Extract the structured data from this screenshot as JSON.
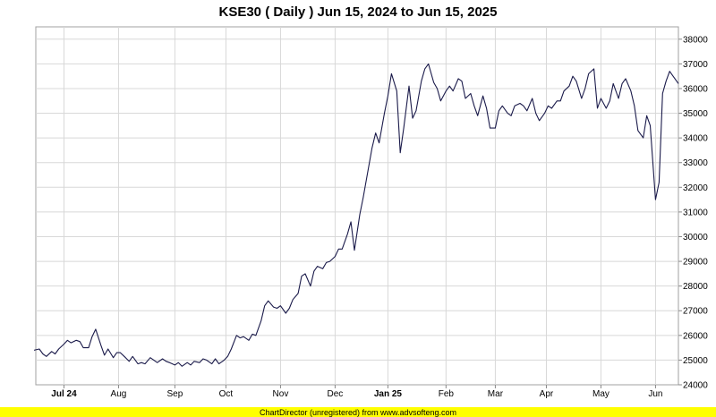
{
  "chart_data": {
    "type": "line",
    "title": "KSE30 ( Daily ) Jun 15, 2024 to Jun 15, 2025",
    "xlabel": "",
    "ylabel": "",
    "x_start": "2024-06-15",
    "x_end": "2025-06-15",
    "ylim": [
      24000,
      38500
    ],
    "y_ticks": [
      24000,
      25000,
      26000,
      27000,
      28000,
      29000,
      30000,
      31000,
      32000,
      33000,
      34000,
      35000,
      36000,
      37000,
      38000
    ],
    "x_ticks": [
      {
        "date": "2024-07-01",
        "label": "Jul 24",
        "bold": true
      },
      {
        "date": "2024-08-01",
        "label": "Aug",
        "bold": false
      },
      {
        "date": "2024-09-02",
        "label": "Sep",
        "bold": false
      },
      {
        "date": "2024-10-01",
        "label": "Oct",
        "bold": false
      },
      {
        "date": "2024-11-01",
        "label": "Nov",
        "bold": false
      },
      {
        "date": "2024-12-02",
        "label": "Dec",
        "bold": false
      },
      {
        "date": "2025-01-01",
        "label": "Jan 25",
        "bold": true
      },
      {
        "date": "2025-02-03",
        "label": "Feb",
        "bold": false
      },
      {
        "date": "2025-03-03",
        "label": "Mar",
        "bold": false
      },
      {
        "date": "2025-04-01",
        "label": "Apr",
        "bold": false
      },
      {
        "date": "2025-05-02",
        "label": "May",
        "bold": false
      },
      {
        "date": "2025-06-02",
        "label": "Jun",
        "bold": false
      }
    ],
    "grid": true,
    "line_color": "#1a1a4a",
    "series": [
      {
        "name": "",
        "points": [
          [
            "2024-06-14",
            25400
          ],
          [
            "2024-06-17",
            25450
          ],
          [
            "2024-06-19",
            25250
          ],
          [
            "2024-06-21",
            25150
          ],
          [
            "2024-06-24",
            25350
          ],
          [
            "2024-06-26",
            25250
          ],
          [
            "2024-06-28",
            25450
          ],
          [
            "2024-07-01",
            25650
          ],
          [
            "2024-07-03",
            25800
          ],
          [
            "2024-07-05",
            25700
          ],
          [
            "2024-07-08",
            25800
          ],
          [
            "2024-07-10",
            25750
          ],
          [
            "2024-07-12",
            25500
          ],
          [
            "2024-07-15",
            25500
          ],
          [
            "2024-07-17",
            25950
          ],
          [
            "2024-07-19",
            26250
          ],
          [
            "2024-07-22",
            25600
          ],
          [
            "2024-07-24",
            25200
          ],
          [
            "2024-07-26",
            25450
          ],
          [
            "2024-07-29",
            25100
          ],
          [
            "2024-07-31",
            25300
          ],
          [
            "2024-08-02",
            25300
          ],
          [
            "2024-08-05",
            25100
          ],
          [
            "2024-08-07",
            24950
          ],
          [
            "2024-08-09",
            25150
          ],
          [
            "2024-08-12",
            24850
          ],
          [
            "2024-08-14",
            24900
          ],
          [
            "2024-08-16",
            24850
          ],
          [
            "2024-08-19",
            25100
          ],
          [
            "2024-08-21",
            25000
          ],
          [
            "2024-08-23",
            24900
          ],
          [
            "2024-08-26",
            25050
          ],
          [
            "2024-08-28",
            24950
          ],
          [
            "2024-08-30",
            24900
          ],
          [
            "2024-09-02",
            24800
          ],
          [
            "2024-09-04",
            24900
          ],
          [
            "2024-09-06",
            24750
          ],
          [
            "2024-09-09",
            24900
          ],
          [
            "2024-09-11",
            24800
          ],
          [
            "2024-09-13",
            24950
          ],
          [
            "2024-09-16",
            24900
          ],
          [
            "2024-09-18",
            25050
          ],
          [
            "2024-09-20",
            25000
          ],
          [
            "2024-09-23",
            24850
          ],
          [
            "2024-09-25",
            25050
          ],
          [
            "2024-09-27",
            24850
          ],
          [
            "2024-09-30",
            25000
          ],
          [
            "2024-10-02",
            25150
          ],
          [
            "2024-10-04",
            25450
          ],
          [
            "2024-10-07",
            26000
          ],
          [
            "2024-10-09",
            25900
          ],
          [
            "2024-10-11",
            25950
          ],
          [
            "2024-10-14",
            25800
          ],
          [
            "2024-10-16",
            26050
          ],
          [
            "2024-10-18",
            26000
          ],
          [
            "2024-10-21",
            26600
          ],
          [
            "2024-10-23",
            27200
          ],
          [
            "2024-10-25",
            27400
          ],
          [
            "2024-10-28",
            27150
          ],
          [
            "2024-10-30",
            27100
          ],
          [
            "2024-11-01",
            27200
          ],
          [
            "2024-11-04",
            26900
          ],
          [
            "2024-11-06",
            27100
          ],
          [
            "2024-11-08",
            27450
          ],
          [
            "2024-11-11",
            27700
          ],
          [
            "2024-11-13",
            28400
          ],
          [
            "2024-11-15",
            28500
          ],
          [
            "2024-11-18",
            28000
          ],
          [
            "2024-11-20",
            28600
          ],
          [
            "2024-11-22",
            28800
          ],
          [
            "2024-11-25",
            28700
          ],
          [
            "2024-11-27",
            28950
          ],
          [
            "2024-11-29",
            29000
          ],
          [
            "2024-12-02",
            29200
          ],
          [
            "2024-12-04",
            29500
          ],
          [
            "2024-12-06",
            29500
          ],
          [
            "2024-12-09",
            30100
          ],
          [
            "2024-12-11",
            30600
          ],
          [
            "2024-12-13",
            29450
          ],
          [
            "2024-12-16",
            30900
          ],
          [
            "2024-12-18",
            31600
          ],
          [
            "2024-12-20",
            32400
          ],
          [
            "2024-12-23",
            33600
          ],
          [
            "2024-12-25",
            34200
          ],
          [
            "2024-12-27",
            33800
          ],
          [
            "2024-12-30",
            35000
          ],
          [
            "2025-01-01",
            35700
          ],
          [
            "2025-01-03",
            36600
          ],
          [
            "2025-01-06",
            35900
          ],
          [
            "2025-01-08",
            33400
          ],
          [
            "2025-01-10",
            34400
          ],
          [
            "2025-01-13",
            36100
          ],
          [
            "2025-01-15",
            34800
          ],
          [
            "2025-01-17",
            35100
          ],
          [
            "2025-01-20",
            36300
          ],
          [
            "2025-01-22",
            36800
          ],
          [
            "2025-01-24",
            37000
          ],
          [
            "2025-01-27",
            36250
          ],
          [
            "2025-01-29",
            36000
          ],
          [
            "2025-01-31",
            35500
          ],
          [
            "2025-02-03",
            35900
          ],
          [
            "2025-02-05",
            36100
          ],
          [
            "2025-02-07",
            35900
          ],
          [
            "2025-02-10",
            36400
          ],
          [
            "2025-02-12",
            36300
          ],
          [
            "2025-02-14",
            35600
          ],
          [
            "2025-02-17",
            35800
          ],
          [
            "2025-02-19",
            35300
          ],
          [
            "2025-02-21",
            34900
          ],
          [
            "2025-02-24",
            35700
          ],
          [
            "2025-02-26",
            35200
          ],
          [
            "2025-02-28",
            34400
          ],
          [
            "2025-03-03",
            34400
          ],
          [
            "2025-03-05",
            35100
          ],
          [
            "2025-03-07",
            35300
          ],
          [
            "2025-03-10",
            35000
          ],
          [
            "2025-03-12",
            34900
          ],
          [
            "2025-03-14",
            35300
          ],
          [
            "2025-03-17",
            35400
          ],
          [
            "2025-03-19",
            35300
          ],
          [
            "2025-03-21",
            35100
          ],
          [
            "2025-03-24",
            35600
          ],
          [
            "2025-03-26",
            35000
          ],
          [
            "2025-03-28",
            34700
          ],
          [
            "2025-03-31",
            35000
          ],
          [
            "2025-04-02",
            35300
          ],
          [
            "2025-04-04",
            35200
          ],
          [
            "2025-04-07",
            35500
          ],
          [
            "2025-04-09",
            35500
          ],
          [
            "2025-04-11",
            35900
          ],
          [
            "2025-04-14",
            36100
          ],
          [
            "2025-04-16",
            36500
          ],
          [
            "2025-04-18",
            36300
          ],
          [
            "2025-04-21",
            35600
          ],
          [
            "2025-04-23",
            36000
          ],
          [
            "2025-04-25",
            36600
          ],
          [
            "2025-04-28",
            36800
          ],
          [
            "2025-04-30",
            35200
          ],
          [
            "2025-05-02",
            35600
          ],
          [
            "2025-05-05",
            35200
          ],
          [
            "2025-05-07",
            35500
          ],
          [
            "2025-05-09",
            36200
          ],
          [
            "2025-05-12",
            35600
          ],
          [
            "2025-05-14",
            36200
          ],
          [
            "2025-05-16",
            36400
          ],
          [
            "2025-05-19",
            35900
          ],
          [
            "2025-05-21",
            35300
          ],
          [
            "2025-05-23",
            34300
          ],
          [
            "2025-05-26",
            34000
          ],
          [
            "2025-05-28",
            34900
          ],
          [
            "2025-05-30",
            34500
          ],
          [
            "2025-06-02",
            31500
          ],
          [
            "2025-06-04",
            32200
          ],
          [
            "2025-06-06",
            35800
          ],
          [
            "2025-06-08",
            36300
          ],
          [
            "2025-06-10",
            36700
          ],
          [
            "2025-06-12",
            36500
          ],
          [
            "2025-06-15",
            36200
          ]
        ]
      }
    ]
  },
  "footer": {
    "text": "ChartDirector (unregistered) from www.advsofteng.com"
  },
  "colors": {
    "footer_bg": "#ffff00",
    "grid": "#d8d8d8",
    "axis_text": "#000000"
  }
}
